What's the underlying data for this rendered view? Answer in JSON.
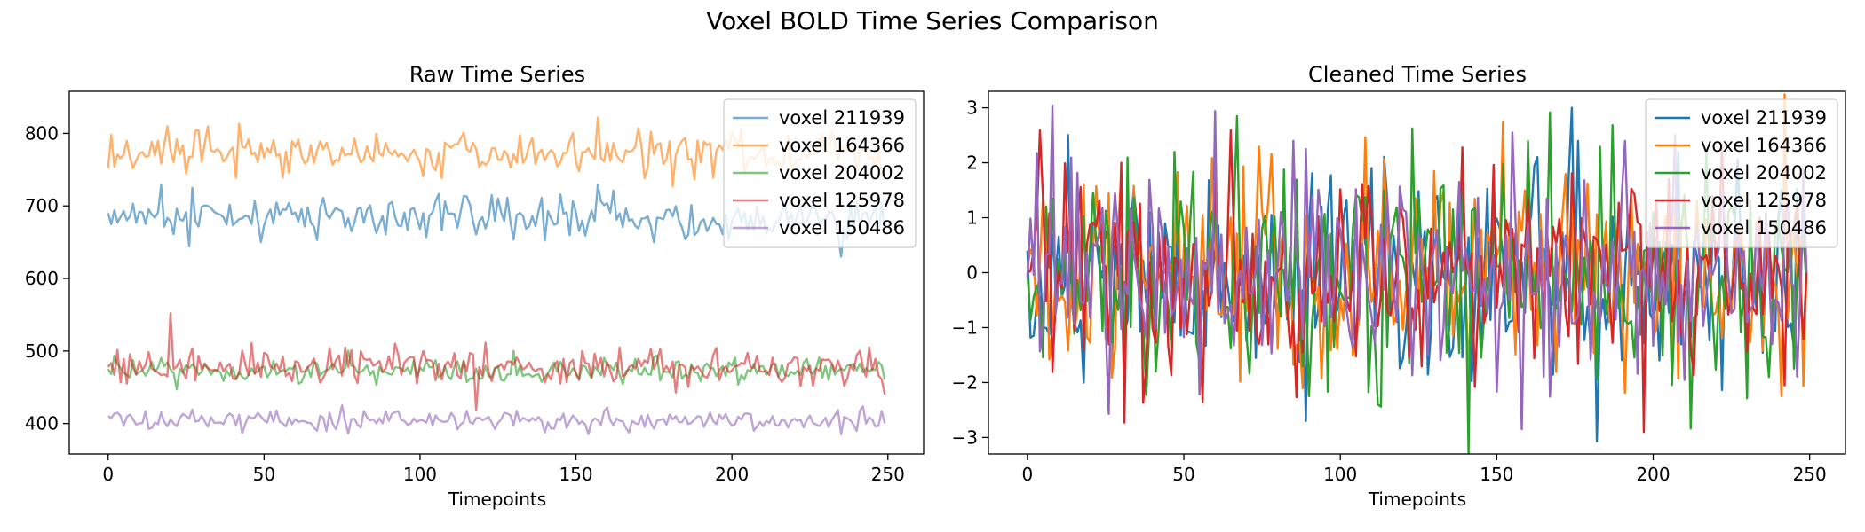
{
  "figure": {
    "title": "Voxel BOLD Time Series Comparison"
  },
  "palette": {
    "tab_blue": "#1f77b4",
    "tab_orange": "#ff7f0e",
    "tab_green": "#2ca02c",
    "tab_red": "#d62728",
    "tab_purple": "#9467bd"
  },
  "chart_data": [
    {
      "type": "line",
      "title": "Raw Time Series",
      "xlabel": "Timepoints",
      "ylabel": "",
      "xlim": [
        -12.45,
        261.45
      ],
      "ylim": [
        358,
        858
      ],
      "xticks": [
        0,
        50,
        100,
        150,
        200,
        250
      ],
      "yticks": [
        400,
        500,
        600,
        700,
        800
      ],
      "grid": false,
      "legend_position": "top-right",
      "line_alpha": 0.6,
      "n_points": 250,
      "series": [
        {
          "name": "voxel 211939",
          "color": "#1f77b4",
          "mean": 685,
          "noise": 15,
          "first": 690,
          "last": 660,
          "peak": {
            "x": 27,
            "y": 725
          },
          "dip": {
            "x": 235,
            "y": 630
          }
        },
        {
          "name": "voxel 164366",
          "color": "#ff7f0e",
          "mean": 772,
          "noise": 15,
          "first": 752,
          "last": 748,
          "peak": {
            "x": 157,
            "y": 822
          },
          "dip": {
            "x": 181,
            "y": 727
          }
        },
        {
          "name": "voxel 204002",
          "color": "#2ca02c",
          "mean": 474,
          "noise": 9,
          "first": 475,
          "last": 460,
          "peak": {
            "x": 130,
            "y": 500
          },
          "dip": {
            "x": 22,
            "y": 447
          }
        },
        {
          "name": "voxel 125978",
          "color": "#d62728",
          "mean": 478,
          "noise": 14,
          "first": 478,
          "last": 440,
          "peak": {
            "x": 20,
            "y": 552
          },
          "dip": {
            "x": 118,
            "y": 418
          }
        },
        {
          "name": "voxel 150486",
          "color": "#9467bd",
          "mean": 404,
          "noise": 7,
          "first": 410,
          "last": 400,
          "peak": {
            "x": 75,
            "y": 425
          },
          "dip": {
            "x": 235,
            "y": 385
          }
        }
      ]
    },
    {
      "type": "line",
      "title": "Cleaned Time Series",
      "xlabel": "Timepoints",
      "ylabel": "",
      "xlim": [
        -12.45,
        261.45
      ],
      "ylim": [
        -3.3,
        3.3
      ],
      "xticks": [
        0,
        50,
        100,
        150,
        200,
        250
      ],
      "yticks": [
        -3,
        -2,
        -1,
        0,
        1,
        2,
        3
      ],
      "grid": false,
      "legend_position": "top-right",
      "line_alpha": 1.0,
      "n_points": 250,
      "series": [
        {
          "name": "voxel 211939",
          "color": "#1f77b4",
          "mean": 0,
          "noise": 1.0,
          "first": 0.4,
          "last": 0.0,
          "peak": {
            "x": 174,
            "y": 3.0
          },
          "dip": {
            "x": 89,
            "y": -2.7
          }
        },
        {
          "name": "voxel 164366",
          "color": "#ff7f0e",
          "mean": 0,
          "noise": 1.0,
          "first": 0.1,
          "last": 0.0,
          "peak": {
            "x": 152,
            "y": 2.75
          },
          "dip": {
            "x": 241,
            "y": -2.25
          }
        },
        {
          "name": "voxel 204002",
          "color": "#2ca02c",
          "mean": 0,
          "noise": 1.0,
          "first": 0.0,
          "last": -0.2,
          "peak": {
            "x": 67,
            "y": 2.85
          },
          "dip": {
            "x": 112,
            "y": -2.4
          }
        },
        {
          "name": "voxel 125978",
          "color": "#d62728",
          "mean": 0,
          "noise": 1.0,
          "first": 0.0,
          "last": 0.0,
          "peak": {
            "x": 30,
            "y": 2.0
          },
          "dip": {
            "x": 197,
            "y": -2.9
          }
        },
        {
          "name": "voxel 150486",
          "color": "#9467bd",
          "mean": 0,
          "noise": 1.0,
          "first": -0.1,
          "last": 0.0,
          "peak": {
            "x": 85,
            "y": 2.4
          },
          "dip": {
            "x": 158,
            "y": -2.85
          }
        }
      ]
    }
  ]
}
